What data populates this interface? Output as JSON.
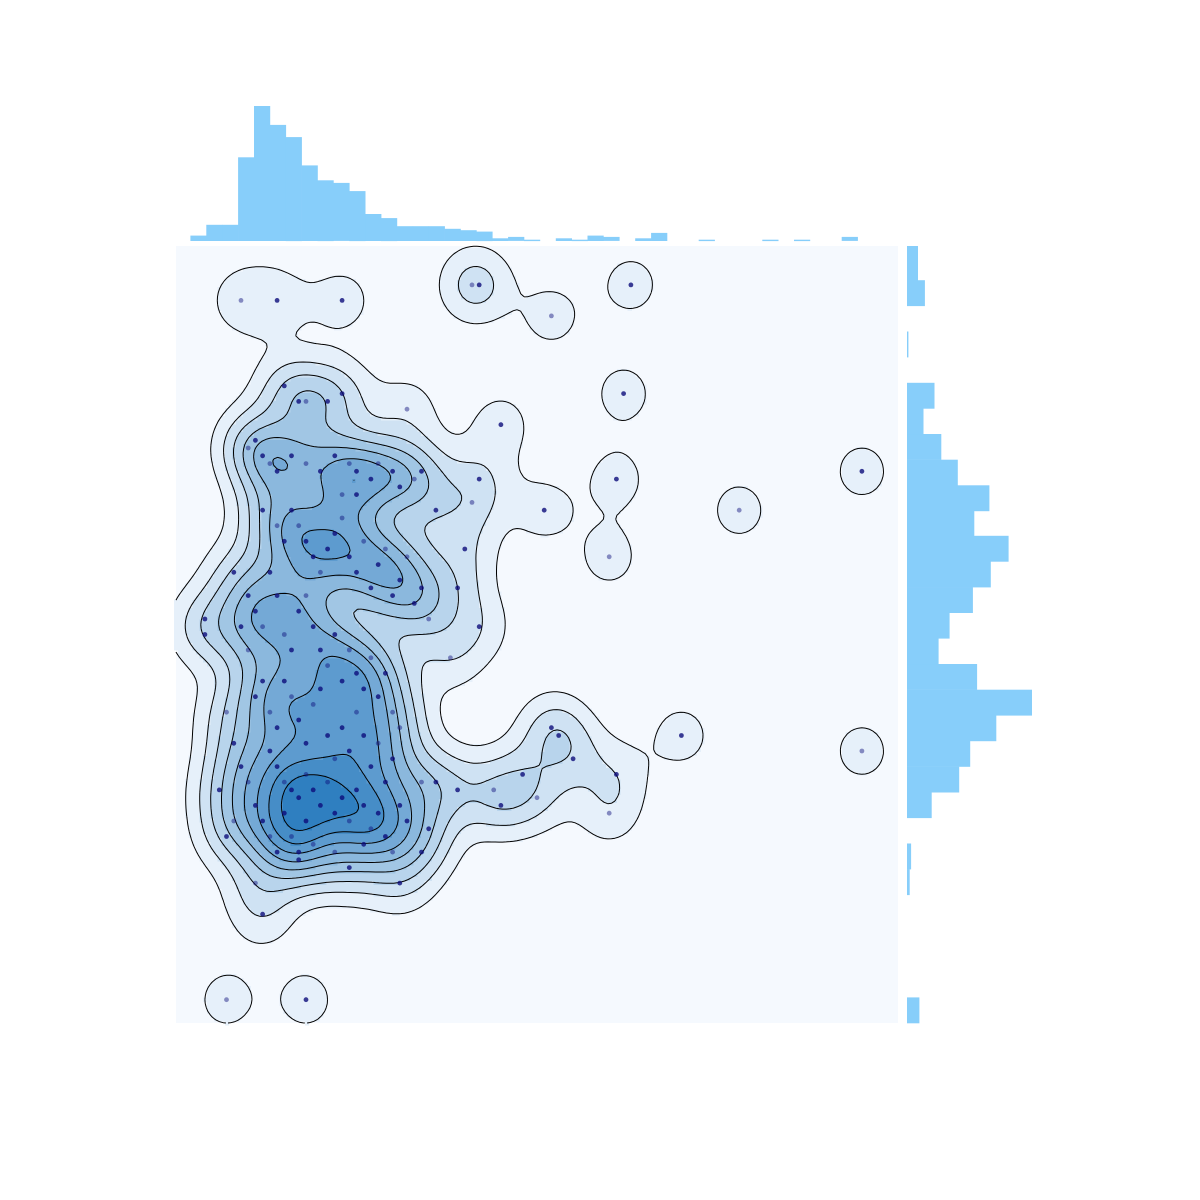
{
  "chart_data": {
    "type": "scatter",
    "title": "",
    "xlabel": "",
    "ylabel": "",
    "xlim": [
      0,
      100
    ],
    "ylim": [
      0,
      100
    ],
    "grid": false,
    "legend": "none",
    "overlays": [
      "kde-contour",
      "marginal-histogram-top",
      "marginal-histogram-right"
    ],
    "colors": {
      "panel": "#f5f9fe",
      "points": "#0c0c7a",
      "hist": "#87cefa",
      "contour_line": "#000000",
      "kde_fill_low": "#e6f0fa",
      "kde_fill_high": "#2f7fc0"
    },
    "points": [
      [
        9,
        93
      ],
      [
        14,
        93
      ],
      [
        23,
        93
      ],
      [
        41,
        95
      ],
      [
        42,
        95
      ],
      [
        63,
        95
      ],
      [
        52,
        91
      ],
      [
        15,
        82
      ],
      [
        17,
        80
      ],
      [
        18,
        80
      ],
      [
        21,
        80
      ],
      [
        23,
        81
      ],
      [
        32,
        79
      ],
      [
        45,
        77
      ],
      [
        62,
        81
      ],
      [
        10,
        74
      ],
      [
        11,
        75
      ],
      [
        12,
        73
      ],
      [
        13,
        72
      ],
      [
        14,
        71
      ],
      [
        16,
        73
      ],
      [
        18,
        72
      ],
      [
        20,
        71
      ],
      [
        22,
        73
      ],
      [
        24,
        72
      ],
      [
        25,
        71
      ],
      [
        27,
        70
      ],
      [
        28,
        72
      ],
      [
        30,
        71
      ],
      [
        31,
        69
      ],
      [
        33,
        70
      ],
      [
        34,
        71
      ],
      [
        25,
        68
      ],
      [
        23,
        68
      ],
      [
        42,
        70
      ],
      [
        36,
        66
      ],
      [
        41,
        67
      ],
      [
        51,
        66
      ],
      [
        61,
        70
      ],
      [
        78,
        66
      ],
      [
        95,
        71
      ],
      [
        40,
        61
      ],
      [
        60,
        60
      ],
      [
        39,
        56
      ],
      [
        12,
        66
      ],
      [
        14,
        64
      ],
      [
        15,
        62
      ],
      [
        16,
        66
      ],
      [
        17,
        64
      ],
      [
        18,
        62
      ],
      [
        19,
        60
      ],
      [
        20,
        58
      ],
      [
        21,
        61
      ],
      [
        22,
        63
      ],
      [
        23,
        65
      ],
      [
        24,
        60
      ],
      [
        25,
        58
      ],
      [
        26,
        62
      ],
      [
        27,
        56
      ],
      [
        28,
        59
      ],
      [
        29,
        61
      ],
      [
        30,
        55
      ],
      [
        31,
        57
      ],
      [
        32,
        60
      ],
      [
        33,
        54
      ],
      [
        34,
        56
      ],
      [
        35,
        52
      ],
      [
        10,
        55
      ],
      [
        11,
        53
      ],
      [
        12,
        51
      ],
      [
        13,
        58
      ],
      [
        14,
        55
      ],
      [
        15,
        50
      ],
      [
        16,
        48
      ],
      [
        17,
        53
      ],
      [
        18,
        55
      ],
      [
        19,
        51
      ],
      [
        20,
        48
      ],
      [
        21,
        46
      ],
      [
        22,
        50
      ],
      [
        23,
        44
      ],
      [
        24,
        48
      ],
      [
        25,
        45
      ],
      [
        26,
        43
      ],
      [
        27,
        47
      ],
      [
        28,
        42
      ],
      [
        29,
        45
      ],
      [
        30,
        40
      ],
      [
        8,
        58
      ],
      [
        9,
        51
      ],
      [
        10,
        48
      ],
      [
        11,
        42
      ],
      [
        12,
        44
      ],
      [
        13,
        40
      ],
      [
        14,
        38
      ],
      [
        15,
        44
      ],
      [
        16,
        42
      ],
      [
        17,
        39
      ],
      [
        18,
        36
      ],
      [
        19,
        41
      ],
      [
        20,
        43
      ],
      [
        21,
        37
      ],
      [
        22,
        34
      ],
      [
        23,
        38
      ],
      [
        24,
        35
      ],
      [
        25,
        40
      ],
      [
        26,
        37
      ],
      [
        27,
        33
      ],
      [
        28,
        36
      ],
      [
        29,
        31
      ],
      [
        30,
        34
      ],
      [
        31,
        38
      ],
      [
        13,
        35
      ],
      [
        14,
        33
      ],
      [
        15,
        31
      ],
      [
        16,
        30
      ],
      [
        17,
        29
      ],
      [
        18,
        32
      ],
      [
        19,
        30
      ],
      [
        20,
        28
      ],
      [
        21,
        31
      ],
      [
        22,
        27
      ],
      [
        23,
        29
      ],
      [
        24,
        26
      ],
      [
        25,
        30
      ],
      [
        26,
        28
      ],
      [
        27,
        25
      ],
      [
        28,
        27
      ],
      [
        29,
        24
      ],
      [
        30,
        22
      ],
      [
        4,
        52
      ],
      [
        4,
        50
      ],
      [
        7,
        40
      ],
      [
        8,
        36
      ],
      [
        9,
        33
      ],
      [
        10,
        31
      ],
      [
        11,
        28
      ],
      [
        12,
        26
      ],
      [
        13,
        24
      ],
      [
        14,
        22
      ],
      [
        15,
        27
      ],
      [
        16,
        24
      ],
      [
        17,
        21
      ],
      [
        18,
        26
      ],
      [
        19,
        23
      ],
      [
        31,
        28
      ],
      [
        32,
        26
      ],
      [
        34,
        31
      ],
      [
        36,
        31
      ],
      [
        39,
        30
      ],
      [
        44,
        30
      ],
      [
        45,
        28
      ],
      [
        48,
        32
      ],
      [
        50,
        29
      ],
      [
        53,
        37
      ],
      [
        55,
        34
      ],
      [
        38,
        47
      ],
      [
        42,
        51
      ],
      [
        52,
        38
      ],
      [
        60,
        27
      ],
      [
        61,
        32
      ],
      [
        70,
        37
      ],
      [
        95,
        35
      ],
      [
        35,
        25
      ],
      [
        31,
        18
      ],
      [
        8,
        26
      ],
      [
        7,
        24
      ],
      [
        6,
        30
      ],
      [
        11,
        18
      ],
      [
        12,
        14
      ],
      [
        17,
        22
      ],
      [
        22,
        22
      ],
      [
        26,
        23
      ],
      [
        18,
        3
      ],
      [
        7,
        3
      ],
      [
        34,
        22
      ],
      [
        24,
        20
      ]
    ],
    "hist_x": {
      "bin_edges": [
        2,
        4.2,
        6.4,
        8.6,
        10.8,
        13,
        15.2,
        17.4,
        19.6,
        21.8,
        24,
        26.2,
        28.4,
        30.6,
        32.8,
        35,
        37.2,
        39.4,
        41.6,
        43.8,
        46,
        48.2,
        50.4,
        52.6,
        54.8,
        57,
        59.2,
        61.4,
        63.6,
        65.8,
        68,
        70.2,
        72.4,
        74.6,
        76.8,
        79,
        81.2,
        83.4,
        85.6,
        87.8,
        90,
        92.2,
        94.4,
        96.6
      ],
      "counts": [
        4,
        12,
        12,
        62,
        100,
        86,
        77,
        56,
        45,
        43,
        37,
        20,
        17,
        11,
        11,
        11,
        9,
        8,
        7,
        2,
        3,
        1,
        0,
        2,
        1,
        4,
        3,
        0,
        2,
        6,
        0,
        0,
        1,
        0,
        0,
        0,
        1,
        0,
        1,
        0,
        0,
        3,
        0
      ]
    },
    "hist_y": {
      "bin_edges": [
        0,
        3.3,
        6.6,
        9.9,
        13.2,
        16.5,
        19.8,
        23.1,
        26.4,
        29.7,
        33,
        36.3,
        39.6,
        42.9,
        46.2,
        49.5,
        52.8,
        56.1,
        59.4,
        62.7,
        65.9,
        69.2,
        72.5,
        75.8,
        79.1,
        82.4,
        85.7,
        89,
        92.3,
        95.6,
        100
      ],
      "counts": [
        9,
        0,
        0,
        0,
        0,
        2,
        3,
        0,
        18,
        38,
        46,
        65,
        91,
        51,
        23,
        31,
        48,
        61,
        74,
        49,
        60,
        37,
        25,
        12,
        20,
        0,
        1,
        0,
        13,
        8
      ]
    }
  }
}
